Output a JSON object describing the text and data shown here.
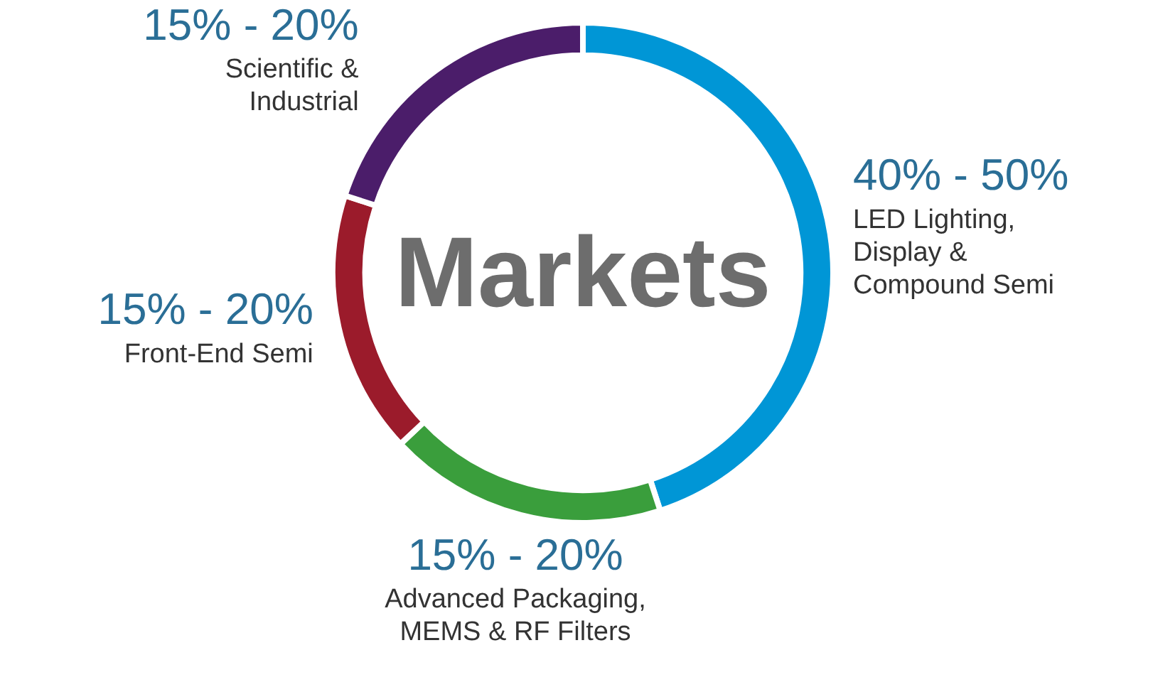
{
  "chart_data": {
    "type": "donut",
    "title": "Markets",
    "categories": [
      "LED Lighting, Display & Compound Semi",
      "Advanced Packaging, MEMS & RF Filters",
      "Front-End Semi",
      "Scientific & Industrial"
    ],
    "values": [
      45,
      18,
      17,
      20
    ],
    "annotations": [
      "40% - 50%",
      "15% - 20%",
      "15% - 20%",
      "15% - 20%"
    ],
    "colors": [
      "#0096d6",
      "#3a9e3c",
      "#9b1b2b",
      "#4b1d6a"
    ],
    "legend": false
  }
}
